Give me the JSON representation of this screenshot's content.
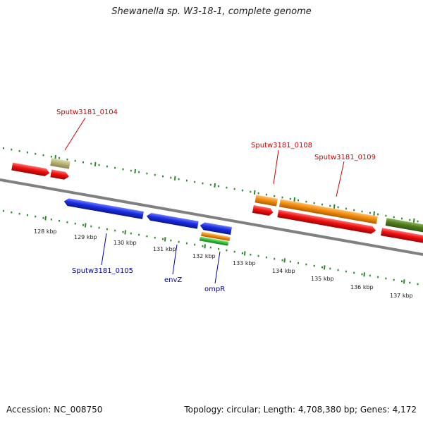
{
  "title": "Shewanella sp. W3-18-1, complete genome",
  "footer": {
    "accession": "Accession: NC_008750",
    "info": "Topology: circular; Length: 4,708,380 bp; Genes: 4,172"
  },
  "ticks": [
    "128 kbp",
    "129 kbp",
    "130 kbp",
    "131 kbp",
    "132 kbp",
    "133 kbp",
    "134 kbp",
    "135 kbp",
    "136 kbp",
    "137 kbp"
  ],
  "labels": {
    "Sputw3181_0104": "Sputw3181_0104",
    "Sputw3181_0105": "Sputw3181_0105",
    "envZ": "envZ",
    "ompR": "ompR",
    "Sputw3181_0108": "Sputw3181_0108",
    "Sputw3181_0109": "Sputw3181_0109"
  },
  "colors": {
    "red": "#ee1111",
    "blue": "#1a2fe0",
    "orange": "#f18d0c",
    "green": "#33c233",
    "olive": "#4f7d1e",
    "khaki": "#b8b47a",
    "backbone": "#808080",
    "dots": "#2a8a2a",
    "red_label": "#cc0000",
    "blue_label": "#0000aa"
  }
}
